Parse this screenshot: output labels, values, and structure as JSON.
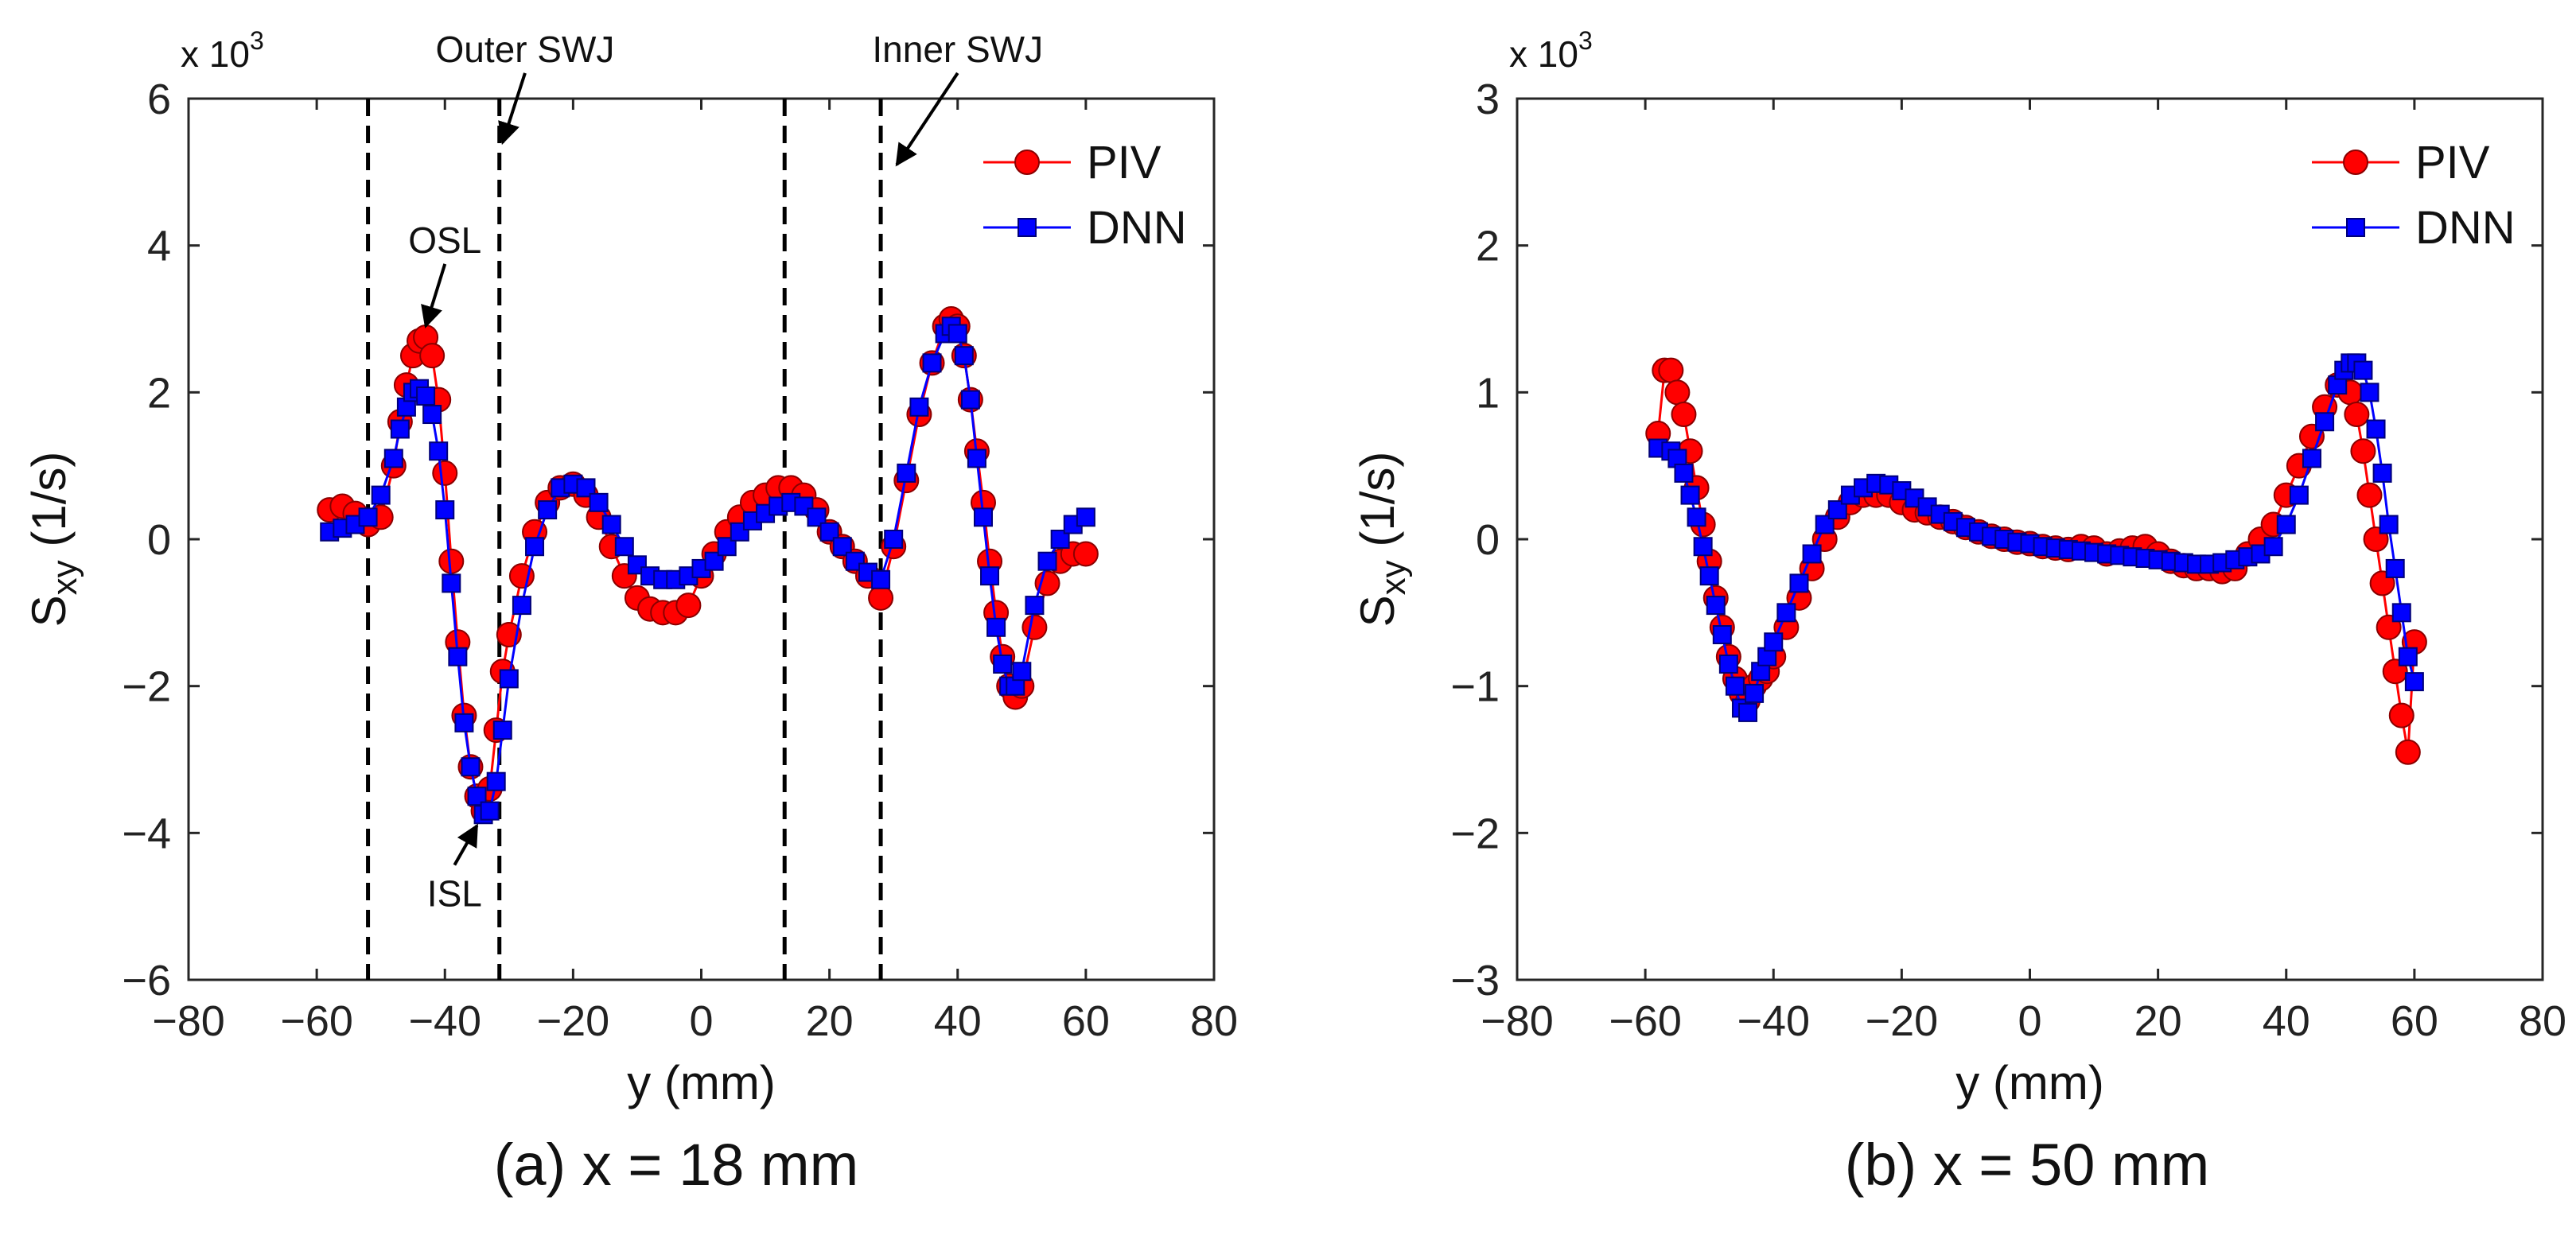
{
  "chart_data": [
    {
      "id": "a",
      "type": "scatter",
      "caption": "(a) x = 18 mm",
      "xlabel": "y (mm)",
      "ylabel_main": "S",
      "ylabel_sub": "xy",
      "ylabel_unit": " (1/s)",
      "multiplier_base": "x 10",
      "multiplier_exp": "3",
      "xlim": [
        -80,
        80
      ],
      "ylim": [
        -6,
        6
      ],
      "xticks": [
        -80,
        -60,
        -40,
        -20,
        0,
        20,
        40,
        60,
        80
      ],
      "yticks": [
        -6,
        -4,
        -2,
        0,
        2,
        4,
        6
      ],
      "xtick_labels": [
        "−80",
        "−60",
        "−40",
        "−20",
        "0",
        "20",
        "40",
        "60",
        "80"
      ],
      "ytick_labels": [
        "−6",
        "−4",
        "−2",
        "0",
        "2",
        "4",
        "6"
      ],
      "vlines": [
        -52,
        -31.5,
        13,
        28
      ],
      "annotations": [
        {
          "text": "Outer SWJ",
          "x": -27.5,
          "y": 6.5,
          "tx": -31,
          "ty": 5.4
        },
        {
          "text": "Inner SWJ",
          "x": 40,
          "y": 6.5,
          "tx": 30.5,
          "ty": 5.1
        },
        {
          "text": "OSL",
          "x": -40,
          "y": 3.9,
          "tx": -43,
          "ty": 2.9
        },
        {
          "text": "ISL",
          "x": -38.5,
          "y": -5.0,
          "tx": -35,
          "ty": -3.9
        }
      ],
      "series": [
        {
          "name": "PIV",
          "marker": "circle",
          "color": "#ff0000",
          "edge": "#8a0000",
          "x": [
            -58,
            -56,
            -54,
            -52,
            -50,
            -48,
            -47,
            -46,
            -45,
            -44,
            -43,
            -42,
            -41,
            -40,
            -39,
            -38,
            -37,
            -36,
            -35,
            -34,
            -33,
            -32,
            -31,
            -30,
            -28,
            -26,
            -24,
            -22,
            -20,
            -18,
            -16,
            -14,
            -12,
            -10,
            -8,
            -6,
            -4,
            -2,
            0,
            2,
            4,
            6,
            8,
            10,
            12,
            14,
            16,
            18,
            20,
            22,
            24,
            26,
            28,
            30,
            32,
            34,
            36,
            38,
            39,
            40,
            41,
            42,
            43,
            44,
            45,
            46,
            47,
            48,
            49,
            50,
            52,
            54,
            56,
            58,
            60
          ],
          "y": [
            0.4,
            0.45,
            0.35,
            0.2,
            0.3,
            1.0,
            1.6,
            2.1,
            2.5,
            2.7,
            2.75,
            2.5,
            1.9,
            0.9,
            -0.3,
            -1.4,
            -2.4,
            -3.1,
            -3.5,
            -3.7,
            -3.4,
            -2.6,
            -1.8,
            -1.3,
            -0.5,
            0.1,
            0.5,
            0.7,
            0.75,
            0.6,
            0.3,
            -0.1,
            -0.5,
            -0.8,
            -0.95,
            -1.0,
            -1.0,
            -0.9,
            -0.5,
            -0.2,
            0.1,
            0.3,
            0.5,
            0.6,
            0.7,
            0.7,
            0.6,
            0.4,
            0.1,
            -0.1,
            -0.3,
            -0.5,
            -0.8,
            -0.1,
            0.8,
            1.7,
            2.4,
            2.9,
            3.0,
            2.9,
            2.5,
            1.9,
            1.2,
            0.5,
            -0.3,
            -1.0,
            -1.6,
            -2.0,
            -2.15,
            -2.0,
            -1.2,
            -0.6,
            -0.3,
            -0.2,
            -0.2
          ]
        },
        {
          "name": "DNN",
          "marker": "square",
          "color": "#0000ff",
          "edge": "#00007a",
          "x": [
            -58,
            -56,
            -54,
            -52,
            -50,
            -48,
            -47,
            -46,
            -45,
            -44,
            -43,
            -42,
            -41,
            -40,
            -39,
            -38,
            -37,
            -36,
            -35,
            -34,
            -33,
            -32,
            -31,
            -30,
            -28,
            -26,
            -24,
            -22,
            -20,
            -18,
            -16,
            -14,
            -12,
            -10,
            -8,
            -6,
            -4,
            -2,
            0,
            2,
            4,
            6,
            8,
            10,
            12,
            14,
            16,
            18,
            20,
            22,
            24,
            26,
            28,
            30,
            32,
            34,
            36,
            38,
            39,
            40,
            41,
            42,
            43,
            44,
            45,
            46,
            47,
            48,
            49,
            50,
            52,
            54,
            56,
            58,
            60
          ],
          "y": [
            0.1,
            0.15,
            0.2,
            0.3,
            0.6,
            1.1,
            1.5,
            1.8,
            2.0,
            2.05,
            1.95,
            1.7,
            1.2,
            0.4,
            -0.6,
            -1.6,
            -2.5,
            -3.1,
            -3.5,
            -3.75,
            -3.7,
            -3.3,
            -2.6,
            -1.9,
            -0.9,
            -0.1,
            0.4,
            0.7,
            0.75,
            0.7,
            0.5,
            0.2,
            -0.1,
            -0.35,
            -0.5,
            -0.55,
            -0.55,
            -0.5,
            -0.4,
            -0.3,
            -0.1,
            0.1,
            0.25,
            0.35,
            0.45,
            0.5,
            0.45,
            0.3,
            0.1,
            -0.1,
            -0.3,
            -0.45,
            -0.55,
            0.0,
            0.9,
            1.8,
            2.4,
            2.8,
            2.9,
            2.8,
            2.5,
            1.9,
            1.1,
            0.3,
            -0.5,
            -1.2,
            -1.7,
            -2.0,
            -2.0,
            -1.8,
            -0.9,
            -0.3,
            0.0,
            0.2,
            0.3
          ]
        }
      ]
    },
    {
      "id": "b",
      "type": "scatter",
      "caption": "(b) x = 50 mm",
      "xlabel": "y (mm)",
      "ylabel_main": "S",
      "ylabel_sub": "xy",
      "ylabel_unit": " (1/s)",
      "multiplier_base": "x 10",
      "multiplier_exp": "3",
      "xlim": [
        -80,
        80
      ],
      "ylim": [
        -3,
        3
      ],
      "xticks": [
        -80,
        -60,
        -40,
        -20,
        0,
        20,
        40,
        60,
        80
      ],
      "yticks": [
        -3,
        -2,
        -1,
        0,
        1,
        2,
        3
      ],
      "xtick_labels": [
        "−80",
        "−60",
        "−40",
        "−20",
        "0",
        "20",
        "40",
        "60",
        "80"
      ],
      "ytick_labels": [
        "−3",
        "−2",
        "−1",
        "0",
        "1",
        "2",
        "3"
      ],
      "vlines": [],
      "annotations": [],
      "series": [
        {
          "name": "PIV",
          "marker": "circle",
          "color": "#ff0000",
          "edge": "#8a0000",
          "x": [
            -58,
            -57,
            -56,
            -55,
            -54,
            -53,
            -52,
            -51,
            -50,
            -49,
            -48,
            -47,
            -46,
            -45,
            -44,
            -43,
            -42,
            -41,
            -40,
            -38,
            -36,
            -34,
            -32,
            -30,
            -28,
            -26,
            -24,
            -22,
            -20,
            -18,
            -16,
            -14,
            -12,
            -10,
            -8,
            -6,
            -4,
            -2,
            0,
            2,
            4,
            6,
            8,
            10,
            12,
            14,
            16,
            18,
            20,
            22,
            24,
            26,
            28,
            30,
            32,
            34,
            36,
            38,
            40,
            42,
            44,
            46,
            48,
            50,
            51,
            52,
            53,
            54,
            55,
            56,
            57,
            58,
            59,
            60
          ],
          "y": [
            0.72,
            1.15,
            1.15,
            1.0,
            0.85,
            0.6,
            0.35,
            0.1,
            -0.15,
            -0.4,
            -0.6,
            -0.8,
            -0.95,
            -1.05,
            -1.1,
            -1.0,
            -0.95,
            -0.9,
            -0.8,
            -0.6,
            -0.4,
            -0.2,
            0.0,
            0.15,
            0.25,
            0.3,
            0.3,
            0.3,
            0.25,
            0.2,
            0.18,
            0.15,
            0.12,
            0.08,
            0.05,
            0.02,
            0.0,
            -0.02,
            -0.03,
            -0.05,
            -0.06,
            -0.07,
            -0.05,
            -0.06,
            -0.1,
            -0.08,
            -0.06,
            -0.05,
            -0.1,
            -0.15,
            -0.18,
            -0.2,
            -0.2,
            -0.22,
            -0.2,
            -0.1,
            0.0,
            0.1,
            0.3,
            0.5,
            0.7,
            0.9,
            1.05,
            1.0,
            0.85,
            0.6,
            0.3,
            0.0,
            -0.3,
            -0.6,
            -0.9,
            -1.2,
            -1.45,
            -0.7
          ]
        },
        {
          "name": "DNN",
          "marker": "square",
          "color": "#0000ff",
          "edge": "#00007a",
          "x": [
            -58,
            -56,
            -55,
            -54,
            -53,
            -52,
            -51,
            -50,
            -49,
            -48,
            -47,
            -46,
            -45,
            -44,
            -43,
            -42,
            -41,
            -40,
            -38,
            -36,
            -34,
            -32,
            -30,
            -28,
            -26,
            -24,
            -22,
            -20,
            -18,
            -16,
            -14,
            -12,
            -10,
            -8,
            -6,
            -4,
            -2,
            0,
            2,
            4,
            6,
            8,
            10,
            12,
            14,
            16,
            18,
            20,
            22,
            24,
            26,
            28,
            30,
            32,
            34,
            36,
            38,
            40,
            42,
            44,
            46,
            48,
            49,
            50,
            51,
            52,
            53,
            54,
            55,
            56,
            57,
            58,
            59,
            60
          ],
          "y": [
            0.62,
            0.6,
            0.55,
            0.45,
            0.3,
            0.15,
            -0.05,
            -0.25,
            -0.45,
            -0.65,
            -0.85,
            -1.0,
            -1.15,
            -1.18,
            -1.05,
            -0.9,
            -0.8,
            -0.7,
            -0.5,
            -0.3,
            -0.1,
            0.1,
            0.2,
            0.3,
            0.35,
            0.38,
            0.37,
            0.33,
            0.28,
            0.22,
            0.17,
            0.12,
            0.08,
            0.05,
            0.02,
            0.0,
            -0.02,
            -0.03,
            -0.05,
            -0.06,
            -0.07,
            -0.08,
            -0.09,
            -0.1,
            -0.11,
            -0.12,
            -0.13,
            -0.14,
            -0.15,
            -0.16,
            -0.17,
            -0.17,
            -0.16,
            -0.14,
            -0.12,
            -0.1,
            -0.05,
            0.1,
            0.3,
            0.55,
            0.8,
            1.05,
            1.15,
            1.2,
            1.2,
            1.15,
            1.0,
            0.75,
            0.45,
            0.1,
            -0.2,
            -0.5,
            -0.8,
            -0.97
          ]
        }
      ]
    }
  ]
}
